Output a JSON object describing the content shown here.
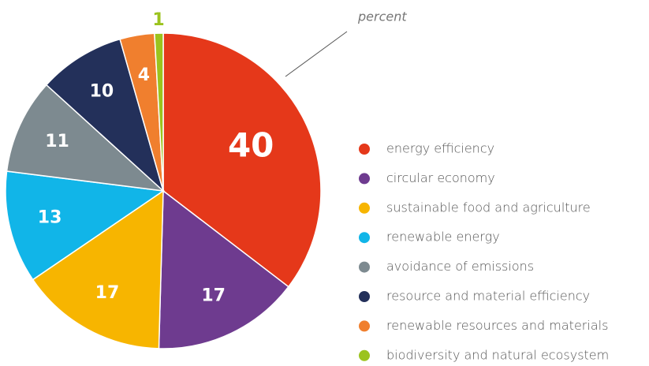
{
  "chart_data": {
    "type": "pie",
    "annotation": "percent",
    "categories": [
      "energy efficiency",
      "circular economy",
      "sustainable food and agriculture",
      "renewable energy",
      "avoidance of emissions",
      "resource and material efficiency",
      "renewable resources and materials",
      "biodiversity and natural ecosystem"
    ],
    "values": [
      40,
      17,
      17,
      13,
      11,
      10,
      4,
      1
    ],
    "colors": [
      "#e5381a",
      "#6e3b8f",
      "#f7b500",
      "#11b5e8",
      "#7d8a90",
      "#23305a",
      "#f07f2e",
      "#9bc31e"
    ],
    "legend": "right"
  }
}
